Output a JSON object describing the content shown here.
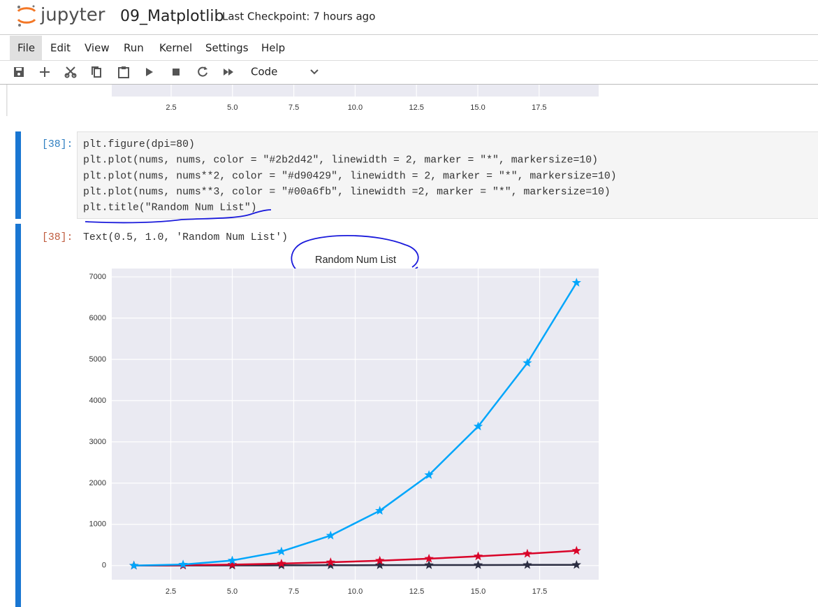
{
  "header": {
    "logo_text": "jupyter",
    "notebook_name": "09_Matplotlib",
    "checkpoint": "Last Checkpoint: 7 hours ago"
  },
  "menu": [
    "File",
    "Edit",
    "View",
    "Run",
    "Kernel",
    "Settings",
    "Help"
  ],
  "toolbar": {
    "cell_type": "Code"
  },
  "previous_output": {
    "xtick_labels": [
      "2.5",
      "5.0",
      "7.5",
      "10.0",
      "12.5",
      "15.0",
      "17.5"
    ]
  },
  "cell": {
    "prompt": "[38]:",
    "code": [
      "plt.figure(dpi=80)",
      "plt.plot(nums, nums, color = \"#2b2d42\", linewidth = 2, marker = \"*\", markersize=10)",
      "plt.plot(nums, nums**2, color = \"#d90429\", linewidth = 2, marker = \"*\", markersize=10)",
      "plt.plot(nums, nums**3, color = \"#00a6fb\", linewidth =2, marker = \"*\", markersize=10)",
      "plt.title(\"Random Num List\")"
    ],
    "output_prompt": "[38]:",
    "output_text": "Text(0.5, 1.0, 'Random Num List')"
  },
  "chart_data": {
    "type": "line",
    "title": "Random Num List",
    "x": [
      1,
      3,
      5,
      7,
      9,
      11,
      13,
      15,
      17,
      19
    ],
    "series": [
      {
        "color": "#2b2d42",
        "values": [
          1,
          3,
          5,
          7,
          9,
          11,
          13,
          15,
          17,
          19
        ]
      },
      {
        "color": "#d90429",
        "values": [
          1,
          9,
          25,
          49,
          81,
          121,
          169,
          225,
          289,
          361
        ]
      },
      {
        "color": "#00a6fb",
        "values": [
          1,
          27,
          125,
          343,
          729,
          1331,
          2197,
          3375,
          4913,
          6859
        ]
      }
    ],
    "marker": "star",
    "grid": true,
    "background": "#eaeaf2",
    "xlim": [
      0.1,
      19.9
    ],
    "xticks": [
      2.5,
      {
        "value": 5,
        "label": "5.0"
      },
      7.5,
      {
        "value": 10,
        "label": "10.0"
      },
      12.5,
      {
        "value": 15,
        "label": "15.0"
      },
      17.5
    ],
    "ylim": [
      -342,
      7202
    ],
    "yticks": [
      0,
      1000,
      2000,
      3000,
      4000,
      5000,
      6000,
      7000
    ]
  }
}
